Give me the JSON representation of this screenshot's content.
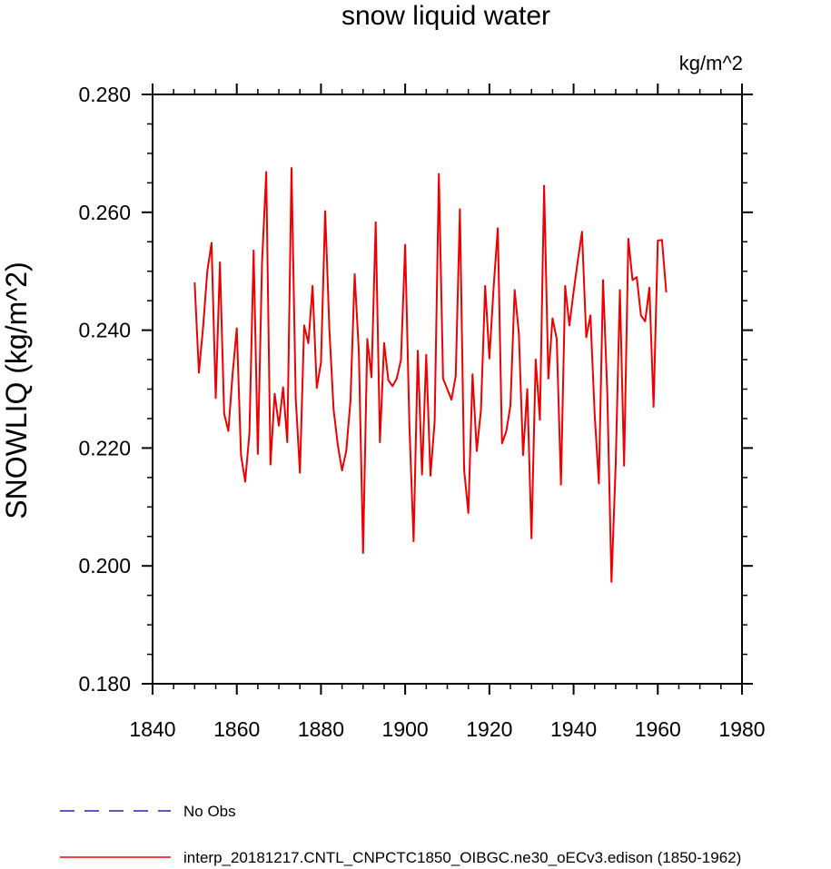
{
  "chart_data": {
    "type": "line",
    "title": "snow liquid water",
    "units": "kg/m^2",
    "xlabel": "",
    "ylabel": "SNOWLIQ  (kg/m^2)",
    "xlim": [
      1840,
      1980
    ],
    "ylim": [
      0.18,
      0.28
    ],
    "xticks": [
      1840,
      1860,
      1880,
      1900,
      1920,
      1940,
      1960,
      1980
    ],
    "xtick_labels": [
      "1840",
      "1860",
      "1880",
      "1900",
      "1920",
      "1940",
      "1960",
      "1980"
    ],
    "yticks": [
      0.18,
      0.2,
      0.22,
      0.24,
      0.26,
      0.28
    ],
    "ytick_labels": [
      "0.180",
      "0.200",
      "0.220",
      "0.240",
      "0.260",
      "0.280"
    ],
    "grid": false,
    "legend": [
      {
        "label": "No Obs",
        "color": "#2222bb",
        "style": "dashed"
      },
      {
        "label": "interp_20181217.CNTL_CNPCTC1850_OIBGC.ne30_oECv3.edison (1850-1962)",
        "color": "#ee0000",
        "style": "solid"
      }
    ],
    "series": [
      {
        "name": "interp_20181217.CNTL_CNPCTC1850_OIBGC.ne30_oECv3.edison (1850-1962)",
        "color": "#ee0000",
        "x": [
          1850,
          1851,
          1852,
          1853,
          1854,
          1855,
          1856,
          1857,
          1858,
          1859,
          1860,
          1861,
          1862,
          1863,
          1864,
          1865,
          1866,
          1867,
          1868,
          1869,
          1870,
          1871,
          1872,
          1873,
          1874,
          1875,
          1876,
          1877,
          1878,
          1879,
          1880,
          1881,
          1882,
          1883,
          1884,
          1885,
          1886,
          1887,
          1888,
          1889,
          1890,
          1891,
          1892,
          1893,
          1894,
          1895,
          1896,
          1897,
          1898,
          1899,
          1900,
          1901,
          1902,
          1903,
          1904,
          1905,
          1906,
          1907,
          1908,
          1909,
          1910,
          1911,
          1912,
          1913,
          1914,
          1915,
          1916,
          1917,
          1918,
          1919,
          1920,
          1921,
          1922,
          1923,
          1924,
          1925,
          1926,
          1927,
          1928,
          1929,
          1930,
          1931,
          1932,
          1933,
          1934,
          1935,
          1936,
          1937,
          1938,
          1939,
          1940,
          1941,
          1942,
          1943,
          1944,
          1945,
          1946,
          1947,
          1948,
          1949,
          1950,
          1951,
          1952,
          1953,
          1954,
          1955,
          1956,
          1957,
          1958,
          1959,
          1960,
          1961,
          1962
        ],
        "values": [
          0.248,
          0.2328,
          0.2405,
          0.25,
          0.2548,
          0.2285,
          0.2515,
          0.2258,
          0.2229,
          0.2325,
          0.2403,
          0.2188,
          0.2143,
          0.2225,
          0.2535,
          0.219,
          0.2515,
          0.2668,
          0.2172,
          0.2292,
          0.2238,
          0.2303,
          0.221,
          0.2675,
          0.2285,
          0.2158,
          0.2408,
          0.2378,
          0.2475,
          0.2302,
          0.2345,
          0.2602,
          0.24,
          0.2265,
          0.2205,
          0.2162,
          0.2195,
          0.228,
          0.2495,
          0.2362,
          0.2022,
          0.2385,
          0.232,
          0.2583,
          0.221,
          0.2378,
          0.2315,
          0.2305,
          0.2318,
          0.235,
          0.2545,
          0.2238,
          0.2042,
          0.2365,
          0.2155,
          0.2358,
          0.2153,
          0.2245,
          0.2665,
          0.2318,
          0.23,
          0.2282,
          0.2322,
          0.2605,
          0.2163,
          0.209,
          0.2325,
          0.2195,
          0.2265,
          0.2475,
          0.2352,
          0.2472,
          0.2573,
          0.2208,
          0.2228,
          0.2272,
          0.2468,
          0.2395,
          0.2188,
          0.23,
          0.2047,
          0.235,
          0.2248,
          0.2645,
          0.2318,
          0.242,
          0.2385,
          0.2138,
          0.2475,
          0.2408,
          0.2465,
          0.2518,
          0.2567,
          0.2388,
          0.2425,
          0.2258,
          0.214,
          0.2485,
          0.2295,
          0.1973,
          0.2172,
          0.2468,
          0.217,
          0.2555,
          0.2485,
          0.249,
          0.2425,
          0.2415,
          0.2472,
          0.227,
          0.2552,
          0.2553,
          0.2465
        ]
      }
    ]
  }
}
